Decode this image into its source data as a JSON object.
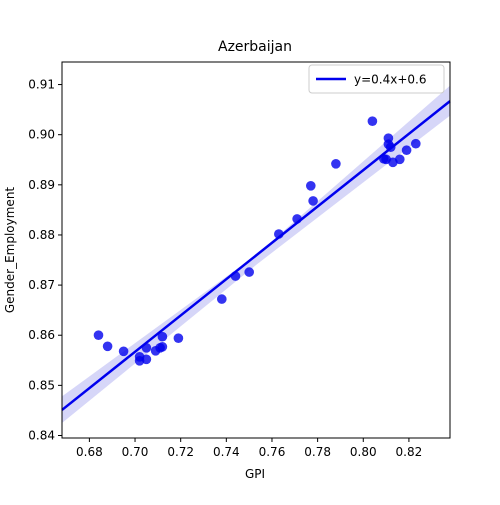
{
  "chart_data": {
    "type": "scatter",
    "title": "Azerbaijan",
    "xlabel": "GPI",
    "ylabel": "Gender_Employment",
    "xlim": [
      0.668,
      0.838
    ],
    "ylim": [
      0.8395,
      0.9145
    ],
    "xticks": [
      0.68,
      0.7,
      0.72,
      0.74,
      0.76,
      0.78,
      0.8,
      0.82
    ],
    "xtick_labels": [
      "0.68",
      "0.70",
      "0.72",
      "0.74",
      "0.76",
      "0.78",
      "0.80",
      "0.82"
    ],
    "yticks": [
      0.84,
      0.85,
      0.86,
      0.87,
      0.88,
      0.89,
      0.9,
      0.91
    ],
    "ytick_labels": [
      "0.84",
      "0.85",
      "0.86",
      "0.87",
      "0.88",
      "0.89",
      "0.90",
      "0.91"
    ],
    "grid": false,
    "legend_position": "top-right",
    "points": {
      "color": "#0000ee",
      "x": [
        0.684,
        0.688,
        0.695,
        0.702,
        0.702,
        0.705,
        0.705,
        0.709,
        0.711,
        0.712,
        0.712,
        0.719,
        0.738,
        0.744,
        0.75,
        0.763,
        0.771,
        0.777,
        0.778,
        0.788,
        0.804,
        0.809,
        0.81,
        0.811,
        0.811,
        0.812,
        0.813,
        0.816,
        0.819,
        0.823
      ],
      "y": [
        0.86,
        0.8578,
        0.8568,
        0.8557,
        0.8549,
        0.8575,
        0.8552,
        0.8569,
        0.8575,
        0.8577,
        0.8597,
        0.8594,
        0.8672,
        0.8718,
        0.8726,
        0.8802,
        0.8832,
        0.8898,
        0.8868,
        0.8942,
        0.9027,
        0.8952,
        0.8951,
        0.8981,
        0.8993,
        0.8975,
        0.8945,
        0.8951,
        0.8969,
        0.8982
      ]
    },
    "regression": {
      "label": "y=0.4x+0.6",
      "color": "#0000ee",
      "band_color": "#c8c8f5",
      "x_start": 0.668,
      "y_start": 0.8451,
      "x_end": 0.838,
      "y_end": 0.9067,
      "ci_start": [
        0.8425,
        0.8478
      ],
      "ci_center": [
        0.874,
        0.876
      ],
      "ci_end": [
        0.9038,
        0.9098
      ]
    }
  }
}
